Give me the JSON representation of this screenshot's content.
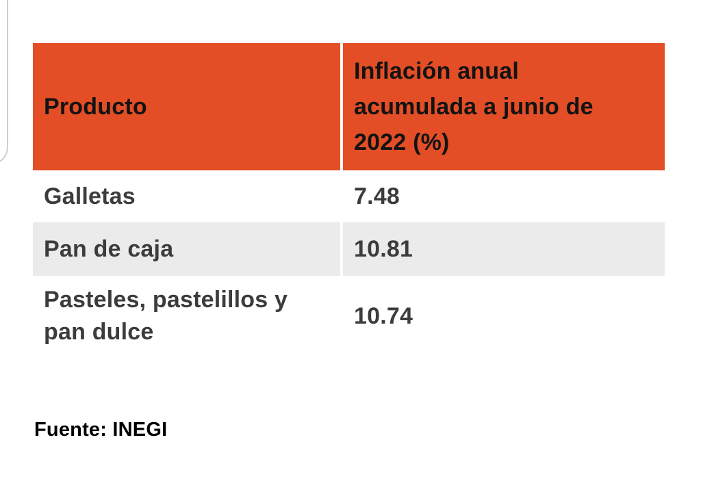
{
  "table": {
    "header": {
      "producto": "Producto",
      "inflacion": "Inflación anual acumulada a junio de 2022 (%)"
    },
    "rows": [
      {
        "producto": "Galletas",
        "valor": "7.48"
      },
      {
        "producto": "Pan de caja",
        "valor": "10.81"
      },
      {
        "producto": "Pasteles, pastelillos y pan dulce",
        "valor": "10.74"
      }
    ]
  },
  "footer": {
    "source": "Fuente: INEGI"
  },
  "colors": {
    "header_bg": "#e34e26",
    "header_text": "#131313",
    "row_alt_bg": "#ebebeb",
    "row_text": "#3c3c3c",
    "card_border": "#cdcdcd",
    "background": "#ffffff"
  },
  "chart_data": {
    "type": "table",
    "title": "",
    "columns": [
      "Producto",
      "Inflación anual acumulada a junio de 2022 (%)"
    ],
    "rows": [
      [
        "Galletas",
        7.48
      ],
      [
        "Pan de caja",
        10.81
      ],
      [
        "Pasteles, pastelillos y pan dulce",
        10.74
      ]
    ],
    "source": "Fuente: INEGI"
  }
}
